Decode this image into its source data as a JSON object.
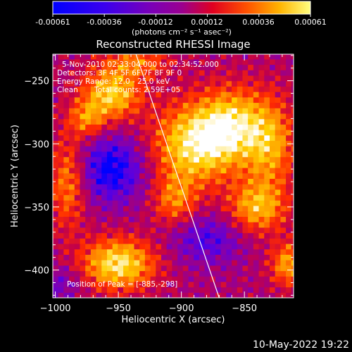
{
  "colorbar": {
    "ticks": [
      "-0.00061",
      "-0.00036",
      "-0.00012",
      "0.00012",
      "0.00036",
      "0.00061"
    ],
    "units_label": "(photons cm⁻² s⁻¹ asec⁻²)",
    "range": [
      -0.00061,
      0.00061
    ]
  },
  "chart_data": {
    "type": "heatmap",
    "title": "Reconstructed RHESSI Image",
    "xlabel": "Heliocentric X (arcsec)",
    "ylabel": "Heliocentric Y (arcsec)",
    "xlim": [
      -1002,
      -811
    ],
    "ylim": [
      -422,
      -229
    ],
    "xticks": [
      -1000,
      -950,
      -900,
      -850
    ],
    "yticks": [
      -400,
      -350,
      -300,
      -250
    ],
    "annotations": [
      "5-Nov-2010 02:33:04.000 to 02:34:52.000",
      "Detectors: 3F 4F 5F 6F 7F 8F 9F 0",
      "Energy Range: 12.0 - 25.0 keV",
      "Clean       Total counts: 2.59E+05",
      "Position of Peak = [-885,-298]"
    ],
    "peak_position": [
      -885,
      -298
    ],
    "limb_line": {
      "x": [
        -936,
        -870
      ],
      "y": [
        -229,
        -422
      ]
    },
    "colormap": [
      "#0000ff",
      "#5a00e0",
      "#8800a8",
      "#c0004c",
      "#ff2a00",
      "#ff8c00",
      "#ffd200",
      "#ffffff"
    ],
    "blobs": [
      {
        "x": -955,
        "y": -260,
        "amp": 0.9,
        "sx": 16,
        "sy": 14
      },
      {
        "x": -890,
        "y": -300,
        "amp": 1.0,
        "sx": 22,
        "sy": 22
      },
      {
        "x": -860,
        "y": -285,
        "amp": 0.85,
        "sx": 18,
        "sy": 20
      },
      {
        "x": -830,
        "y": -300,
        "amp": 0.7,
        "sx": 14,
        "sy": 25
      },
      {
        "x": -840,
        "y": -350,
        "amp": 0.75,
        "sx": 16,
        "sy": 14
      },
      {
        "x": -905,
        "y": -345,
        "amp": 0.55,
        "sx": 12,
        "sy": 14
      },
      {
        "x": -950,
        "y": -395,
        "amp": 1.0,
        "sx": 20,
        "sy": 14
      },
      {
        "x": -990,
        "y": -330,
        "amp": 0.6,
        "sx": 10,
        "sy": 25
      },
      {
        "x": -975,
        "y": -280,
        "amp": 0.55,
        "sx": 10,
        "sy": 10
      },
      {
        "x": -815,
        "y": -395,
        "amp": 0.7,
        "sx": 10,
        "sy": 12
      },
      {
        "x": -935,
        "y": -235,
        "amp": 0.5,
        "sx": 18,
        "sy": 8
      },
      {
        "x": -955,
        "y": -320,
        "amp": -0.7,
        "sx": 18,
        "sy": 18
      },
      {
        "x": -880,
        "y": -375,
        "amp": -0.45,
        "sx": 20,
        "sy": 14
      },
      {
        "x": -995,
        "y": -410,
        "amp": -0.3,
        "sx": 12,
        "sy": 10
      }
    ]
  },
  "footer": {
    "timestamp": "10-May-2022 19:22"
  }
}
